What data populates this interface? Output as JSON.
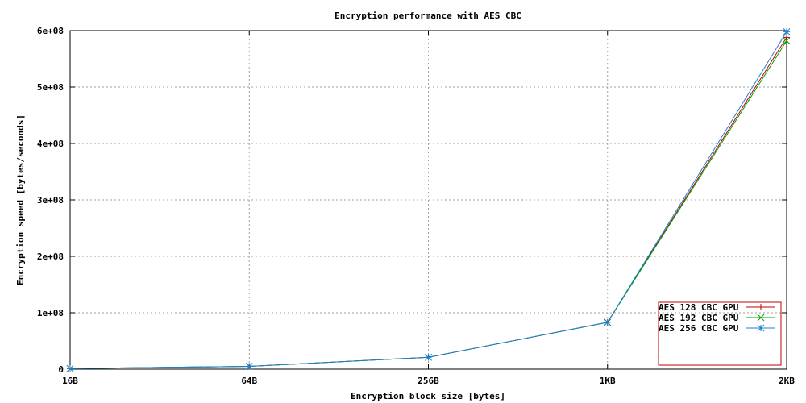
{
  "chart_data": {
    "type": "line",
    "title": "Encryption performance with AES CBC",
    "xlabel": "Encryption block size [bytes]",
    "ylabel": "Encryption speed [bytes/seconds]",
    "categories": [
      "16B",
      "64B",
      "256B",
      "1KB",
      "2KB"
    ],
    "yticks": [
      "0",
      "1e+08",
      "2e+08",
      "3e+08",
      "4e+08",
      "5e+08",
      "6e+08"
    ],
    "ylim": [
      0,
      600000000
    ],
    "grid": true,
    "legend_position": "bottom-right",
    "series": [
      {
        "name": "AES 128 CBC GPU",
        "color": "#c00000",
        "marker": "plus",
        "values": [
          1000000,
          5000000,
          21000000,
          83000000,
          588000000
        ]
      },
      {
        "name": "AES 192 CBC GPU",
        "color": "#00a000",
        "marker": "cross",
        "values": [
          1000000,
          5000000,
          21000000,
          83000000,
          582000000
        ]
      },
      {
        "name": "AES 256 CBC GPU",
        "color": "#1f7fd0",
        "marker": "star",
        "values": [
          1000000,
          5000000,
          21000000,
          83000000,
          598000000
        ]
      }
    ]
  }
}
